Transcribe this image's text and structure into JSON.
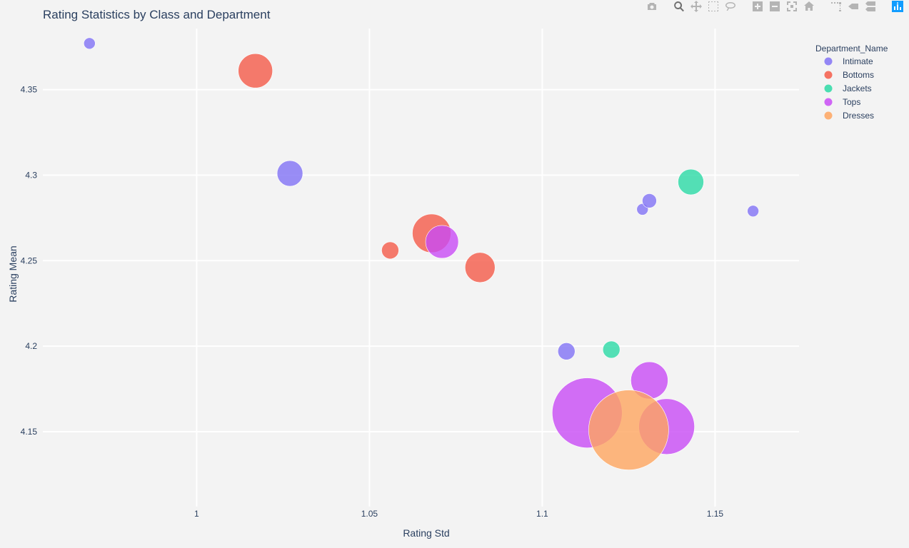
{
  "chart_data": {
    "type": "scatter",
    "title": "Rating Statistics by Class and Department",
    "xlabel": "Rating Std",
    "ylabel": "Rating Mean",
    "xlim": [
      0.9555,
      1.1743
    ],
    "ylim": [
      4.1062,
      4.3857
    ],
    "xticks": [
      1,
      1.05,
      1.1,
      1.15
    ],
    "yticks": [
      4.15,
      4.2,
      4.25,
      4.3,
      4.35
    ],
    "grid": true,
    "legend": {
      "title": "Department_Name",
      "placement": "top-right"
    },
    "series": [
      {
        "name": "Intimate",
        "color": "#8172f5",
        "points": [
          {
            "x": 0.969,
            "y": 4.377,
            "size": 8
          },
          {
            "x": 1.027,
            "y": 4.301,
            "size": 18
          },
          {
            "x": 1.107,
            "y": 4.197,
            "size": 12
          },
          {
            "x": 1.129,
            "y": 4.28,
            "size": 8
          },
          {
            "x": 1.131,
            "y": 4.285,
            "size": 10
          },
          {
            "x": 1.161,
            "y": 4.279,
            "size": 8
          }
        ]
      },
      {
        "name": "Bottoms",
        "color": "#f45a48",
        "points": [
          {
            "x": 1.017,
            "y": 4.361,
            "size": 24
          },
          {
            "x": 1.056,
            "y": 4.256,
            "size": 12
          },
          {
            "x": 1.068,
            "y": 4.266,
            "size": 27
          },
          {
            "x": 1.082,
            "y": 4.246,
            "size": 21
          }
        ]
      },
      {
        "name": "Jackets",
        "color": "#2bd9a5",
        "points": [
          {
            "x": 1.12,
            "y": 4.198,
            "size": 12
          },
          {
            "x": 1.143,
            "y": 4.296,
            "size": 18
          }
        ]
      },
      {
        "name": "Tops",
        "color": "#c84bf5",
        "points": [
          {
            "x": 1.071,
            "y": 4.261,
            "size": 23
          },
          {
            "x": 1.113,
            "y": 4.161,
            "size": 49
          },
          {
            "x": 1.131,
            "y": 4.18,
            "size": 26
          },
          {
            "x": 1.136,
            "y": 4.153,
            "size": 39
          }
        ]
      },
      {
        "name": "Dresses",
        "color": "#fea55f",
        "points": [
          {
            "x": 1.125,
            "y": 4.151,
            "size": 56
          }
        ]
      }
    ]
  },
  "modebar": {
    "buttons": [
      "camera-icon",
      "zoom-icon",
      "pan-icon",
      "box-select-icon",
      "lasso-select-icon",
      "zoom-in-icon",
      "zoom-out-icon",
      "autoscale-icon",
      "reset-axes-icon",
      "spike-lines-icon",
      "hover-closest-icon",
      "hover-compare-icon",
      "plotly-logo-icon"
    ],
    "active": "zoom-icon"
  }
}
